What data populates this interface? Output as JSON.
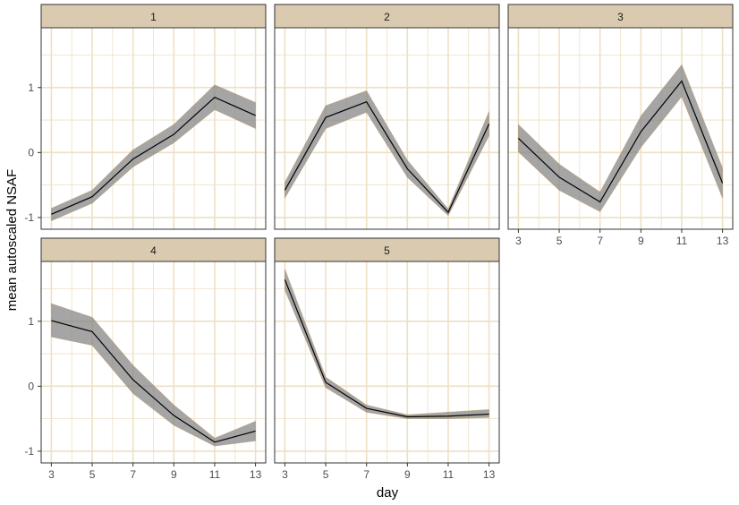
{
  "chart_data": {
    "type": "line",
    "facets": [
      "1",
      "2",
      "3",
      "4",
      "5"
    ],
    "xlabel": "day",
    "ylabel": "mean autoscaled NSAF",
    "x": [
      3,
      5,
      7,
      9,
      11,
      13
    ],
    "x_ticks": [
      "3",
      "5",
      "7",
      "9",
      "11",
      "13"
    ],
    "y_ticks": [
      "-1",
      "0",
      "1"
    ],
    "xlim": [
      2.5,
      13.5
    ],
    "ylim": [
      -1.18,
      1.92
    ],
    "grid": true,
    "confidence_band": true,
    "series": [
      {
        "facet": "1",
        "values": [
          -0.95,
          -0.68,
          -0.1,
          0.28,
          0.85,
          0.57
        ],
        "lower": [
          -1.05,
          -0.78,
          -0.22,
          0.15,
          0.66,
          0.37
        ],
        "upper": [
          -0.86,
          -0.58,
          0.04,
          0.43,
          1.04,
          0.77
        ]
      },
      {
        "facet": "2",
        "values": [
          -0.58,
          0.54,
          0.78,
          -0.25,
          -0.92,
          0.44
        ],
        "lower": [
          -0.7,
          0.37,
          0.62,
          -0.38,
          -0.97,
          0.26
        ],
        "upper": [
          -0.46,
          0.72,
          0.95,
          -0.12,
          -0.87,
          0.63
        ]
      },
      {
        "facet": "3",
        "values": [
          0.22,
          -0.38,
          -0.76,
          0.32,
          1.1,
          -0.47
        ],
        "lower": [
          0.01,
          -0.58,
          -0.91,
          0.08,
          0.86,
          -0.7
        ],
        "upper": [
          0.43,
          -0.18,
          -0.61,
          0.56,
          1.35,
          -0.24
        ]
      },
      {
        "facet": "4",
        "values": [
          1.01,
          0.84,
          0.1,
          -0.45,
          -0.86,
          -0.69
        ],
        "lower": [
          0.76,
          0.63,
          -0.11,
          -0.6,
          -0.92,
          -0.84
        ],
        "upper": [
          1.27,
          1.06,
          0.32,
          -0.29,
          -0.8,
          -0.54
        ]
      },
      {
        "facet": "5",
        "values": [
          1.64,
          0.06,
          -0.34,
          -0.47,
          -0.46,
          -0.43
        ],
        "lower": [
          1.48,
          -0.02,
          -0.4,
          -0.5,
          -0.5,
          -0.48
        ],
        "upper": [
          1.8,
          0.14,
          -0.29,
          -0.44,
          -0.4,
          -0.36
        ]
      }
    ]
  },
  "colors": {
    "strip_fill": "#dacaaf",
    "strip_border": "#333333",
    "grid": "#eee0c4",
    "band": "#7f7f7f",
    "line": "#000000",
    "panel_border": "#333333"
  }
}
